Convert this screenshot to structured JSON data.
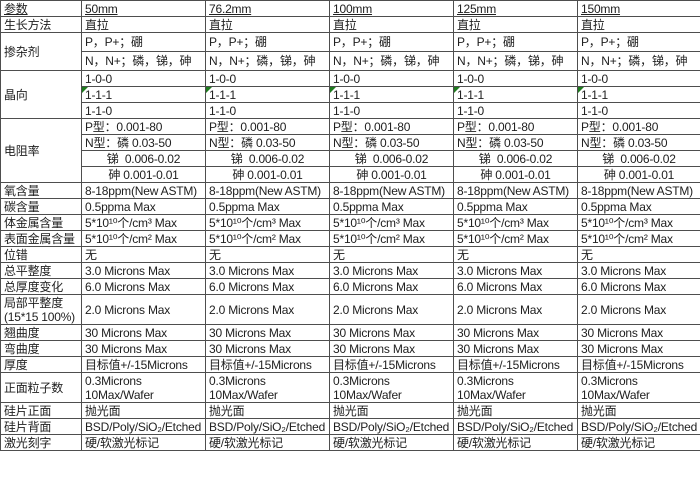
{
  "table": {
    "header": {
      "param_label": "参数",
      "columns": [
        "50mm",
        "76.2mm",
        "100mm",
        "125mm",
        "150mm"
      ]
    },
    "rows": [
      {
        "label": "生长方法",
        "values": [
          "直拉",
          "直拉",
          "直拉",
          "直拉",
          "直拉"
        ]
      },
      {
        "label": "掺杂剂",
        "label_rowspan": 2,
        "size": "m",
        "values": [
          "P，P+；硼",
          "P，P+；硼",
          "P，P+；硼",
          "P，P+；硼",
          "P，P+；硼"
        ]
      },
      {
        "size": "m",
        "values": [
          "N，N+；磷，锑，砷",
          "N，N+；磷，锑，砷",
          "N，N+；磷，锑，砷",
          "N，N+；磷，锑，砷",
          "N，N+；磷，锑，砷"
        ]
      },
      {
        "label": "晶向",
        "label_rowspan": 3,
        "values": [
          "1-0-0",
          "1-0-0",
          "1-0-0",
          "1-0-0",
          "1-0-0"
        ]
      },
      {
        "error_marker": true,
        "values": [
          "1-1-1",
          "1-1-1",
          "1-1-1",
          "1-1-1",
          "1-1-1"
        ]
      },
      {
        "values": [
          "1-1-0",
          "1-1-0",
          "1-1-0",
          "1-1-0",
          "1-1-0"
        ]
      },
      {
        "label": "电阻率",
        "label_rowspan": 4,
        "values": [
          "P型：0.001-80",
          "P型：0.001-80",
          "P型：0.001-80",
          "P型：0.001-80",
          "P型：0.001-80"
        ]
      },
      {
        "values": [
          "N型：磷 0.03-50",
          "N型：磷 0.03-50",
          "N型：磷 0.03-50",
          "N型：磷 0.03-50",
          "N型：磷 0.03-50"
        ]
      },
      {
        "align": "center",
        "values": [
          "锑  0.006-0.02",
          "锑  0.006-0.02",
          "锑  0.006-0.02",
          "锑  0.006-0.02",
          "锑  0.006-0.02"
        ]
      },
      {
        "align": "center",
        "values": [
          "砷 0.001-0.01",
          "砷 0.001-0.01",
          "砷 0.001-0.01",
          "砷 0.001-0.01",
          "砷 0.001-0.01"
        ]
      },
      {
        "label": "氧含量",
        "values": [
          "8-18ppm(New ASTM)",
          "8-18ppm(New ASTM)",
          "8-18ppm(New ASTM)",
          "8-18ppm(New ASTM)",
          "8-18ppm(New ASTM)"
        ]
      },
      {
        "label": "碳含量",
        "values": [
          "0.5ppma Max",
          "0.5ppma Max",
          "0.5ppma Max",
          "0.5ppma Max",
          "0.5ppma Max"
        ]
      },
      {
        "label": "体金属含量",
        "values": [
          "5*10¹⁰个/cm³ Max",
          "5*10¹⁰个/cm³ Max",
          "5*10¹⁰个/cm³ Max",
          "5*10¹⁰个/cm³ Max",
          "5*10¹⁰个/cm³ Max"
        ]
      },
      {
        "label": "表面金属含量",
        "values": [
          "5*10¹⁰个/cm² Max",
          "5*10¹⁰个/cm² Max",
          "5*10¹⁰个/cm² Max",
          "5*10¹⁰个/cm² Max",
          "5*10¹⁰个/cm² Max"
        ]
      },
      {
        "label": "位错",
        "values": [
          "无",
          "无",
          "无",
          "无",
          "无"
        ]
      },
      {
        "label": "总平整度",
        "values": [
          "3.0 Microns Max",
          "3.0 Microns Max",
          "3.0 Microns Max",
          "3.0 Microns Max",
          "3.0 Microns Max"
        ]
      },
      {
        "label": "总厚度变化",
        "values": [
          "6.0 Microns Max",
          "6.0 Microns Max",
          "6.0 Microns Max",
          "6.0 Microns Max",
          "6.0 Microns Max"
        ]
      },
      {
        "label": "局部平整度\n(15*15 100%)",
        "size": "xl",
        "values": [
          "2.0 Microns Max",
          "2.0 Microns Max",
          "2.0 Microns Max",
          "2.0 Microns Max",
          "2.0 Microns Max"
        ]
      },
      {
        "label": "翘曲度",
        "values": [
          "30 Microns Max",
          "30 Microns Max",
          "30 Microns Max",
          "30 Microns Max",
          "30 Microns Max"
        ]
      },
      {
        "label": "弯曲度",
        "values": [
          "30 Microns Max",
          "30 Microns Max",
          "30 Microns Max",
          "30 Microns Max",
          "30 Microns Max"
        ]
      },
      {
        "label": "厚度",
        "values": [
          "目标值+/-15Microns",
          "目标值+/-15Microns",
          "目标值+/-15Microns",
          "目标值+/-15Microns",
          "目标值+/-15Microns"
        ]
      },
      {
        "label": "正面粒子数",
        "size": "xl",
        "values": [
          "0.3Microns\n10Max/Wafer",
          "0.3Microns\n10Max/Wafer",
          "0.3Microns\n10Max/Wafer",
          "0.3Microns\n10Max/Wafer",
          "0.3Microns\n10Max/Wafer"
        ]
      },
      {
        "label": "硅片正面",
        "values": [
          "抛光面",
          "抛光面",
          "抛光面",
          "抛光面",
          "抛光面"
        ]
      },
      {
        "label": "硅片背面",
        "values": [
          "BSD/Poly/SiO₂/Etched",
          "BSD/Poly/SiO₂/Etched",
          "BSD/Poly/SiO₂/Etched",
          "BSD/Poly/SiO₂/Etched",
          "BSD/Poly/SiO₂/Etched"
        ]
      },
      {
        "label": "激光刻字",
        "values": [
          "硬/软激光标记",
          "硬/软激光标记",
          "硬/软激光标记",
          "硬/软激光标记",
          "硬/软激光标记"
        ]
      }
    ]
  },
  "colors": {
    "border": "#4e4e4e",
    "text": "#202020",
    "error_marker_green": "#1e7b1e",
    "background": "#ffffff"
  }
}
